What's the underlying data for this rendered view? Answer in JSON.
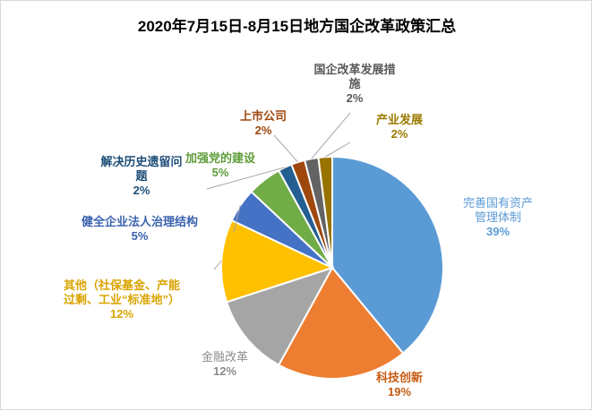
{
  "chart_data": {
    "type": "pie",
    "title": "2020年7月15日-8月15日地方国企改革政策汇总",
    "slices": [
      {
        "name": "完善国有资产管理体制",
        "value": 39,
        "label": "39%",
        "color": "#5b9bd5",
        "label_color": "#5b9bd5",
        "bold": false
      },
      {
        "name": "科技创新",
        "value": 19,
        "label": "19%",
        "color": "#ed7d31",
        "label_color": "#c55a11",
        "bold": true
      },
      {
        "name": "金融改革",
        "value": 12,
        "label": "12%",
        "color": "#a5a5a5",
        "label_color": "#8c8c8c",
        "bold": false
      },
      {
        "name": "其他（社保基金、产能过剩、工业“标准地”）",
        "value": 12,
        "label": "12%",
        "color": "#ffc000",
        "label_color": "#d9a400",
        "bold": true
      },
      {
        "name": "健全企业法人治理结构",
        "value": 5,
        "label": "5%",
        "color": "#4472c4",
        "label_color": "#3a62b0",
        "bold": true
      },
      {
        "name": "加强党的建设",
        "value": 5,
        "label": "5%",
        "color": "#70ad47",
        "label_color": "#5e9c3a",
        "bold": true
      },
      {
        "name": "解决历史遗留问题",
        "value": 2,
        "label": "2%",
        "color": "#255e91",
        "label_color": "#1f4e79",
        "bold": true
      },
      {
        "name": "上市公司",
        "value": 2,
        "label": "2%",
        "color": "#9e480e",
        "label_color": "#9e480e",
        "bold": true
      },
      {
        "name": "国企改革发展措施",
        "value": 2,
        "label": "2%",
        "color": "#636363",
        "label_color": "#595959",
        "bold": true
      },
      {
        "name": "产业发展",
        "value": 2,
        "label": "2%",
        "color": "#997300",
        "label_color": "#9c7a00",
        "bold": true
      }
    ],
    "legend": "none",
    "start_angle": "12 o'clock, clockwise"
  }
}
